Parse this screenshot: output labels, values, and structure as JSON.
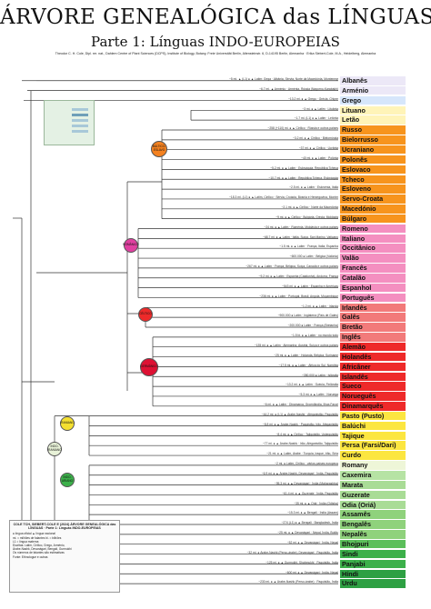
{
  "header": {
    "title": "ÁRVORE GENEALÓGICA das LÍNGUAS",
    "subtitle": "Parte 1: Línguas INDO-EUROPEIAS",
    "credits": "Theodor C. H. Cole, Dipl. rer. nat., Dahlem Centre of Plant Sciences (DCPS), Institute of Biology, Botany, Freie Universität Berlin, Altensteinstr. 6, D-14195 Berlin, Alemanha · Erika Siebert-Cole, M.A., Heidelberg, Alemanha"
  },
  "colors": {
    "Albanês": "#ece8f7",
    "Arménio": "#ece8f7",
    "Grego": "#d6e6fb",
    "Lituano": "#fff4b8",
    "Letão": "#fff4b8",
    "Báltico-Eslavo": "#f58220",
    "Românico": "#e040a0",
    "Céltico": "#ee2a2a",
    "Germânico": "#dd1133",
    "Iraniano": "#f4e030",
    "Indo-Ariano": "#3cb04a",
    "Indo-Iraniano": "#c8e0a0"
  },
  "languages": [
    {
      "name": "Albanês",
      "color": "#ece8f7",
      "meta": "~5 mi. ▲ (L1) ● ▲ Latim: Gega · Albânia, Sérvia, Norte da Macedónia, Montenegro, Kosovo"
    },
    {
      "name": "Arménio",
      "color": "#ece8f7",
      "meta": "~6.7 mi. ▲ Arménio · Arménia, Rússia (Nagorno-Karabakh)"
    },
    {
      "name": "Grego",
      "color": "#d6e6fb",
      "meta": "~13.2 mi. ● ▲ Grego · Grécia, Chipre"
    },
    {
      "name": "Lituano",
      "color": "#fff4b8",
      "meta": "~3 mi. ● ▲ Latim · Lituânia"
    },
    {
      "name": "Letão",
      "color": "#fff4b8",
      "meta": "~1.7 mi. (L1) ● ▲ Latim · Letónia"
    },
    {
      "name": "Russo",
      "color": "#f7941d",
      "meta": "~258 (+110) mi. ● ▲ Cirílico · Rússia e outros países"
    },
    {
      "name": "Bielorrusso",
      "color": "#f7941d",
      "meta": "~3.2 mi. ● ▲ Cirílico · Bielorrússia"
    },
    {
      "name": "Ucraniano",
      "color": "#f7941d",
      "meta": "~37 mi. ● ▲ Cirílico · Ucrânia"
    },
    {
      "name": "Polonês",
      "color": "#f7941d",
      "meta": "~40 mi. ● ▲ Latim · Polónia"
    },
    {
      "name": "Eslovaco",
      "color": "#f7941d",
      "meta": "~5.2 mi. ● ▲ Latim · Eslováquia, República Tcheca"
    },
    {
      "name": "Tcheco",
      "color": "#f7941d",
      "meta": "~10.7 mi. ● ▲ Latim · República Tcheca, Eslováquia"
    },
    {
      "name": "Esloveno",
      "color": "#f7941d",
      "meta": "~2.5 mi. ● ▲ Latim · Eslovénia, Itália"
    },
    {
      "name": "Servo-Croata",
      "color": "#f7941d",
      "meta": "~18.3 mi. (L1) ● ▲ Latim, Cirílico · Sérvia, Croácia, Bósnia e Herzegovina, Montenegro"
    },
    {
      "name": "Macedónio",
      "color": "#f7941d",
      "meta": "~2.1 mi. ● ▲ Cirílico · Norte da Macedónia"
    },
    {
      "name": "Búlgaro",
      "color": "#f7941d",
      "meta": "~9 mi. ● ▲ Cirílico · Bulgária, Grécia, Moldávia"
    },
    {
      "name": "Romeno",
      "color": "#f48fc0",
      "meta": "~24 mi. ● ▲ Latim · Roménia, Moldávia e outros países"
    },
    {
      "name": "Italiano",
      "color": "#f48fc0",
      "meta": "~68.7 mi. ● ▲ Latim · Itália, Suíça, San Marino, Vaticano"
    },
    {
      "name": "Occitânico",
      "color": "#f48fc0",
      "meta": "~1.5 mi. ● ▲ Latim · França, Itália, Espanha"
    },
    {
      "name": "Valão",
      "color": "#f48fc0",
      "meta": "~600.000 ● Latim · Bélgica (Valónia)"
    },
    {
      "name": "Francês",
      "color": "#f48fc0",
      "meta": "~267 mi. ● ▲ Latim · França, Bélgica, Suíça, Canadá e outros países"
    },
    {
      "name": "Catalão",
      "color": "#f48fc0",
      "meta": "~9.2 mi. ● ▲ Latim · Espanha (Catalunha), Andorra, França"
    },
    {
      "name": "Espanhol",
      "color": "#f48fc0",
      "meta": "~543 mi. ● ▲ Latim · Espanha e Américas"
    },
    {
      "name": "Português",
      "color": "#f48fc0",
      "meta": "~236 mi. ● ▲ Latim · Portugal, Brasil, Angola, Moçambique"
    },
    {
      "name": "Irlandês",
      "color": "#f27a7a",
      "meta": "~1.2 mi. ● ▲ Latim · Irlanda"
    },
    {
      "name": "Galês",
      "color": "#f27a7a",
      "meta": "~900.000 ● Latim · Inglaterra (País de Gales)"
    },
    {
      "name": "Bretão",
      "color": "#f27a7a",
      "meta": "~200.000 ● Latim · França (Bretanha)"
    },
    {
      "name": "Inglês",
      "color": "#f27a7a",
      "meta": "~1.5 bi. ● ▲ Latim · no mundo todo"
    },
    {
      "name": "Alemão",
      "color": "#ee2a2a",
      "meta": "~135 mi. ● ▲ Latim · Alemanha, Áustria, Suíça e outros países"
    },
    {
      "name": "Holandês",
      "color": "#ee2a2a",
      "meta": "~25 mi. ● ▲ Latim · Holanda, Bélgica, Suriname"
    },
    {
      "name": "Africâner",
      "color": "#ee2a2a",
      "meta": "~17.5 mi. ● ▲ Latim · África do Sul, Namíbia"
    },
    {
      "name": "Islandês",
      "color": "#ee2a2a",
      "meta": "~350.000 ● Latim · Islândia"
    },
    {
      "name": "Sueco",
      "color": "#ee2a2a",
      "meta": "~13.2 mi. ● ▲ Latim · Suécia, Finlândia"
    },
    {
      "name": "Norueguês",
      "color": "#ee2a2a",
      "meta": "~5.3 mi. ● ▲ Latim · Noruega"
    },
    {
      "name": "Dinamarquês",
      "color": "#ee2a2a",
      "meta": "~6 mi. ● ▲ Latim · Dinamarca, Groenlândia, Ilhas Faroé"
    },
    {
      "name": "Pasto (Pusto)",
      "color": "#fce640",
      "meta": "~44.2 mi. ● (L1) ▲ Árabe-Nashk · Afeganistão, Paquistão"
    },
    {
      "name": "Balúchi",
      "color": "#fce640",
      "meta": "~8.8 mi. ● ▲ Árabe-Nashk · Paquistão, Irão, Afeganistão"
    },
    {
      "name": "Tajique",
      "color": "#fce640",
      "meta": "~8.4 mi. ● ▲ Cirílico · Tajiquistão, Usbequistão"
    },
    {
      "name": "Persa (Farsi/Dari)",
      "color": "#fce640",
      "meta": "~77 mi. ● ▲ Árabe-Nashk · Irão, Afeganistão, Tajiquistão"
    },
    {
      "name": "Curdo",
      "color": "#fce640",
      "meta": "~21 mi. ● ▲ Latim, Árabe · Turquia, Iraque, Irão, Síria"
    },
    {
      "name": "Romany",
      "color": "#eef6d8",
      "meta": "~2 mi. ● Latim, Cirílico · vários países europeus"
    },
    {
      "name": "Caxemira",
      "color": "#b6e3a4",
      "meta": "~6.9 mi. ● ▲ Árabe-Nashk, Devanágari · Índia, Paquistão"
    },
    {
      "name": "Marata",
      "color": "#a9dc96",
      "meta": "~95.3 mi. ● ▲ Devanágari · Índia (Maharashtra)"
    },
    {
      "name": "Guzerate",
      "color": "#a9dc96",
      "meta": "~61.4 mi. ● ▲ Guzerate · Índia, Paquistão"
    },
    {
      "name": "Odia (Oriá)",
      "color": "#a9dc96",
      "meta": "~35 mi. ● ▲ Oriá · Índia (Odisha)"
    },
    {
      "name": "Assamês",
      "color": "#8fd27c",
      "meta": "~15.3 mi. ● ▲ Bengali · Índia (Assam)"
    },
    {
      "name": "Bengalês",
      "color": "#8fd27c",
      "meta": "~274 (L1) ● ▲ Bengali · Bangladesh, Índia"
    },
    {
      "name": "Nepalês",
      "color": "#8fd27c",
      "meta": "~25 mi. ● ▲ Devanágari · Nepal, Índia, Butão"
    },
    {
      "name": "Bhojpuri",
      "color": "#5bbf5a",
      "meta": "~52 mi. ● ▲ Devanágari · Índia, Nepal"
    },
    {
      "name": "Sindi",
      "color": "#3cb04a",
      "meta": "~32 mi. ● Árabe-Nashk (Perso-árabe), Devanágari · Paquistão, Índia"
    },
    {
      "name": "Panjabi",
      "color": "#3cb04a",
      "meta": "~125 mi. ● ▲ Gurmukhi, Shahmukhi · Paquistão, Índia"
    },
    {
      "name": "Híndi",
      "color": "#2ea043",
      "meta": "~600 mi. ● ▲ Devanágari · Índia, Nepal"
    },
    {
      "name": "Urdu",
      "color": "#2ea043",
      "meta": "~230 mi. ● ▲ Árabe-Nashk (Perso-árabe) · Paquistão, Índia"
    }
  ],
  "groups": [
    {
      "label": "BÁLTICO- ESLAVO",
      "color": "#f58220"
    },
    {
      "label": "ROMÂNICO",
      "color": "#e040a0"
    },
    {
      "label": "CÉLTICO",
      "color": "#ee2a2a"
    },
    {
      "label": "GERMÂNICO",
      "color": "#dd1133"
    },
    {
      "label": "IRANIANO",
      "color": "#f4e030"
    },
    {
      "label": "INDO- IRANIANO",
      "color": "#e8f2d8"
    },
    {
      "label": "INDO- ARIANO",
      "color": "#3cb04a"
    }
  ],
  "legend": {
    "heading": "COLE TCH, SIEBERT-COLE E (2024) ÁRVORE GENEALÓGICA das LÍNGUAS · Parte 1: Línguas INDO-EUROPEIAS",
    "lines": [
      "● língua oficial   ▲ língua nacional",
      "mi. = milhões de falantes   bi. = bilhões",
      "L1 = língua materna",
      "Escritas: Latim, Cirílico, Grego, Arménio,",
      "Árabe-Nashk, Devanágari, Bengali, Gurmukhi",
      "Os números de falantes são estimativas",
      "Fonte: Ethnologue e outras"
    ]
  }
}
